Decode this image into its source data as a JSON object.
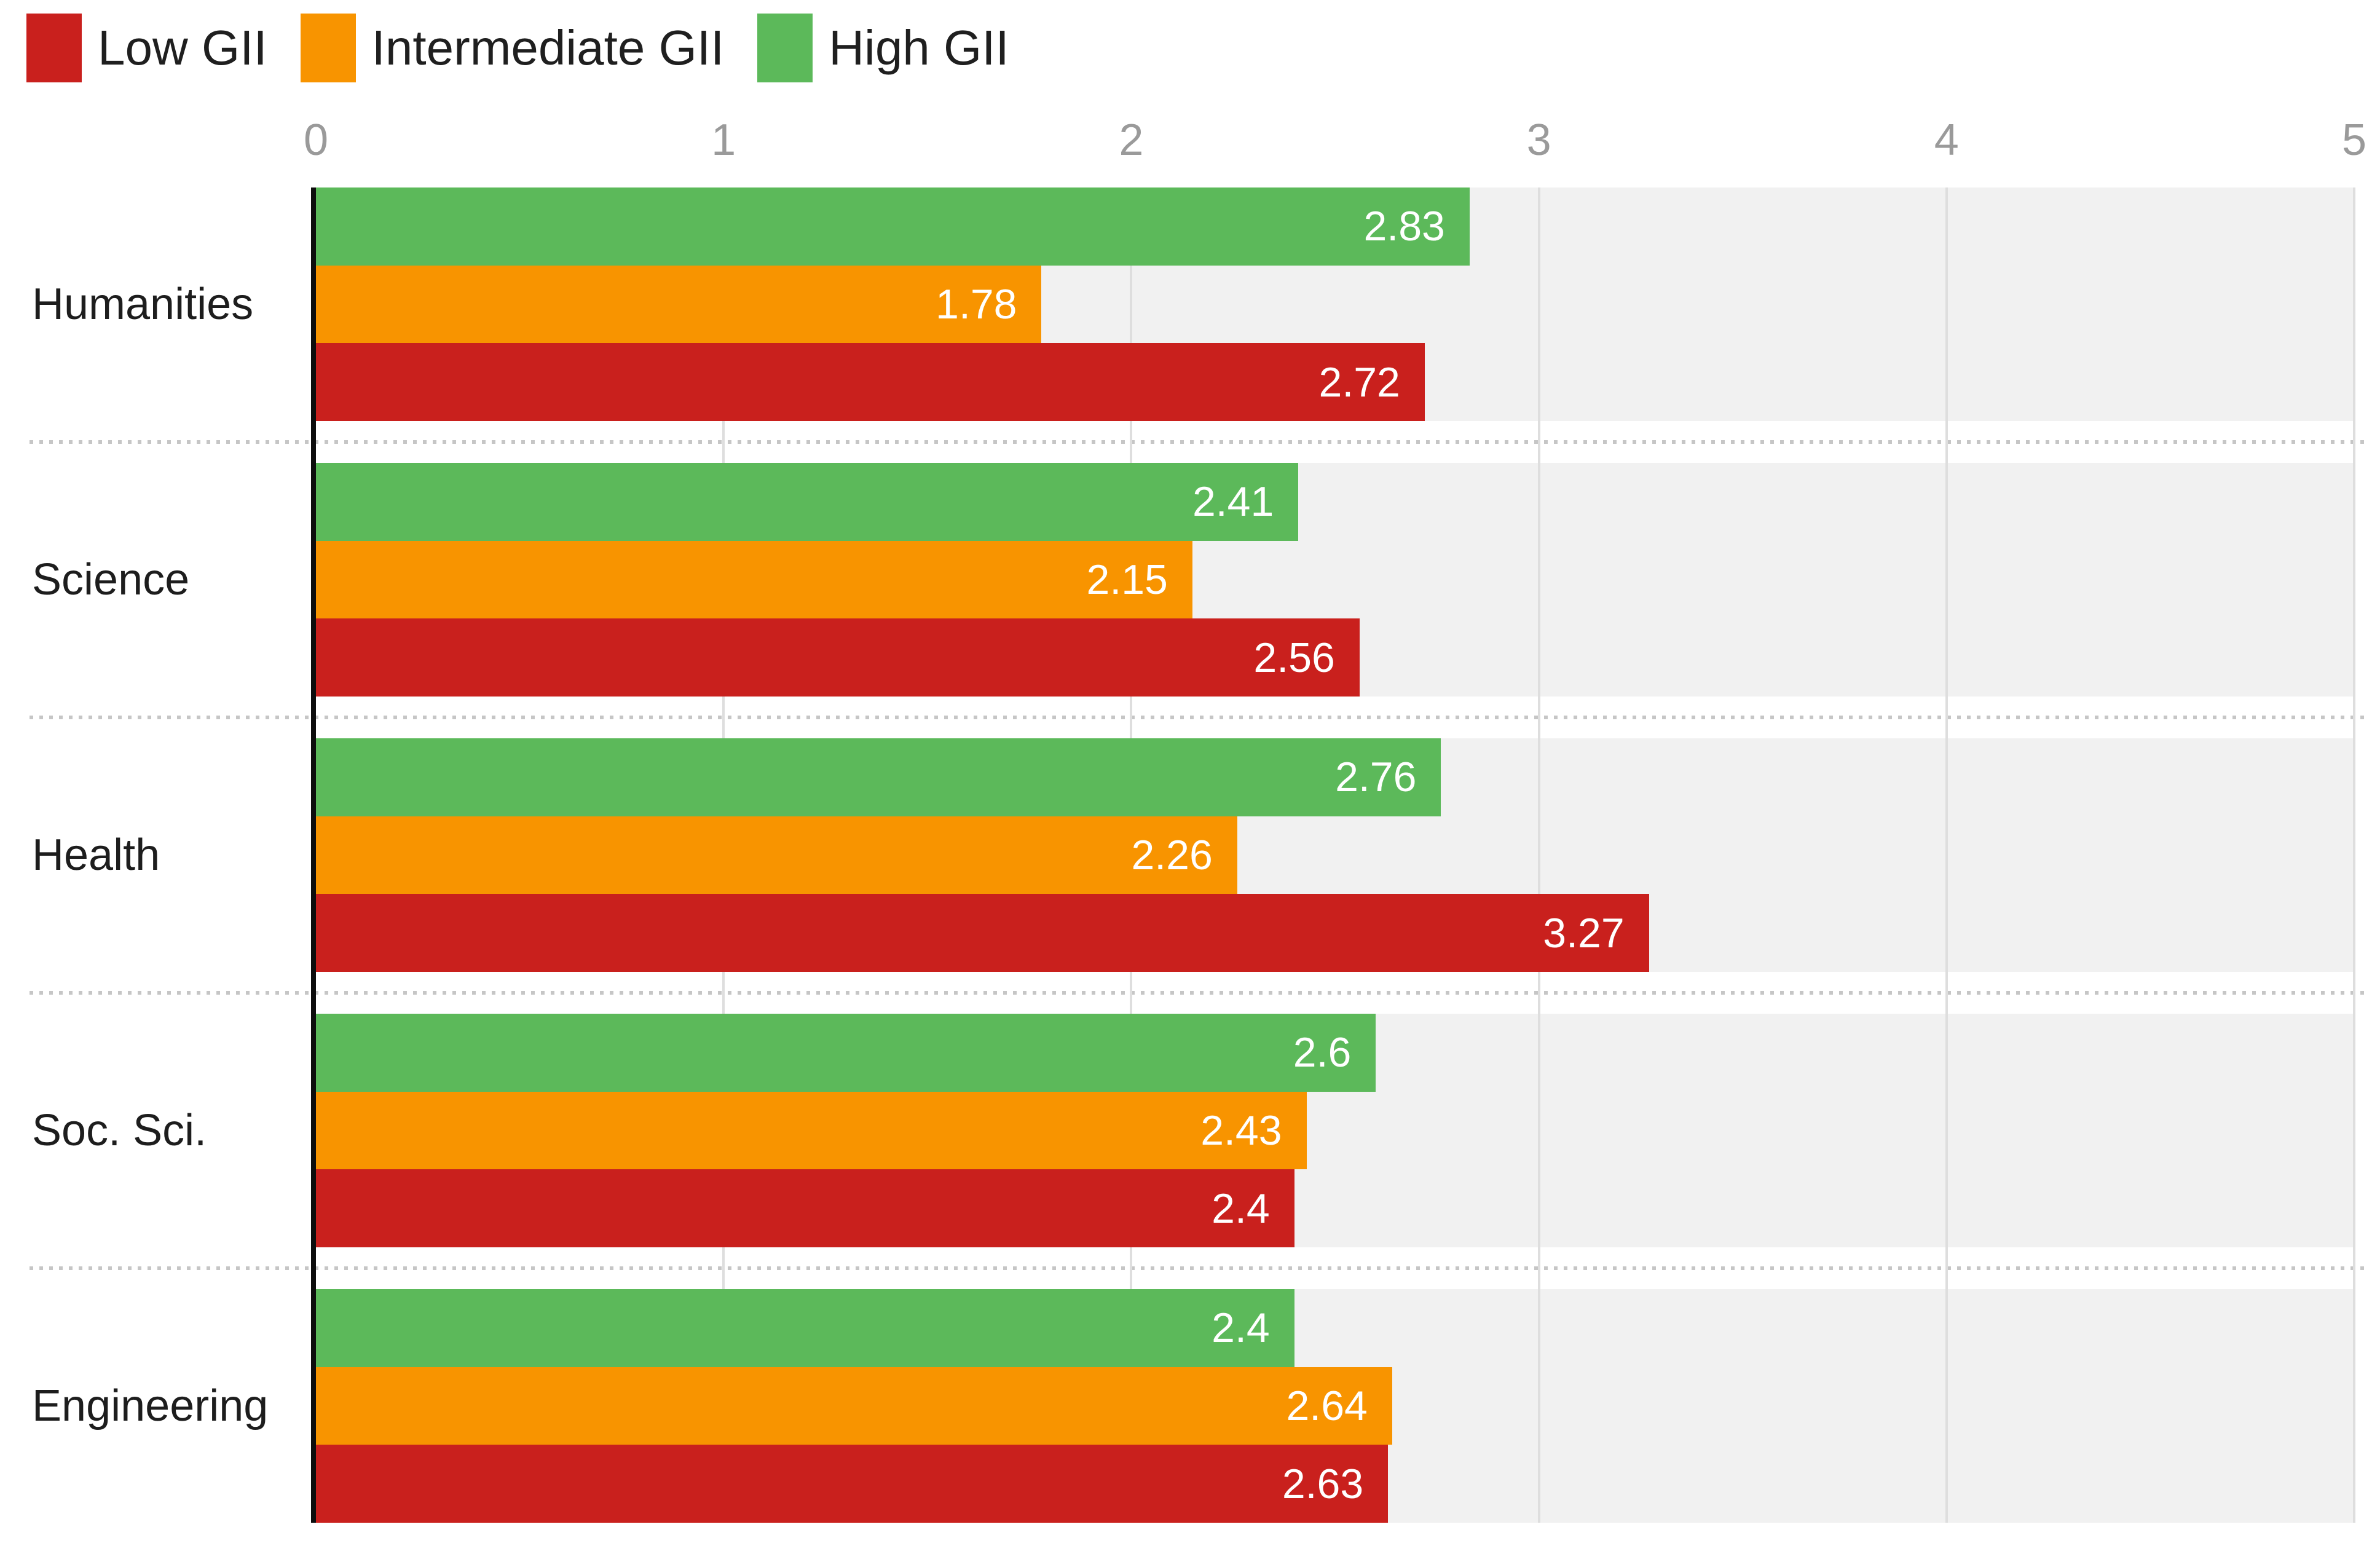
{
  "chart_data": {
    "type": "bar",
    "orientation": "horizontal",
    "title": "",
    "categories": [
      "Humanities",
      "Science",
      "Health",
      "Soc. Sci.",
      "Engineering"
    ],
    "series": [
      {
        "name": "Low GII",
        "color": "#c9201d",
        "values": [
          2.72,
          2.56,
          3.27,
          2.4,
          2.63
        ],
        "labels": [
          "2.72",
          "2.56",
          "3.27",
          "2.4",
          "2.63"
        ]
      },
      {
        "name": "Intermediate GII",
        "color": "#f89400",
        "values": [
          1.78,
          2.15,
          2.26,
          2.43,
          2.64
        ],
        "labels": [
          "1.78",
          "2.15",
          "2.26",
          "2.43",
          "2.64"
        ]
      },
      {
        "name": "High GII",
        "color": "#5cb95a",
        "values": [
          2.83,
          2.41,
          2.76,
          2.6,
          2.4
        ],
        "labels": [
          "2.83",
          "2.41",
          "2.76",
          "2.6",
          "2.4"
        ]
      }
    ],
    "bar_order_top_to_bottom": [
      "High GII",
      "Intermediate GII",
      "Low GII"
    ],
    "xlabel": "",
    "ylabel": "",
    "xlim": [
      0,
      5
    ],
    "x_ticks": [
      "0",
      "1",
      "2",
      "3",
      "4",
      "5"
    ],
    "grid": "vertical gridlines at integer values",
    "legend_position": "top-left",
    "value_labels": "white, inside bar at right end",
    "styles": {
      "plot_band_background": "#f1f1f1",
      "gridline_color": "#dedede",
      "axis_line_color": "#0d0d0d",
      "tick_label_color": "#9a9a9a",
      "category_label_color": "#1d1d1d",
      "value_label_color": "#ffffff",
      "separator_dot_color": "#c6c6c6",
      "legend_text_color": "#1f1f1f"
    }
  }
}
